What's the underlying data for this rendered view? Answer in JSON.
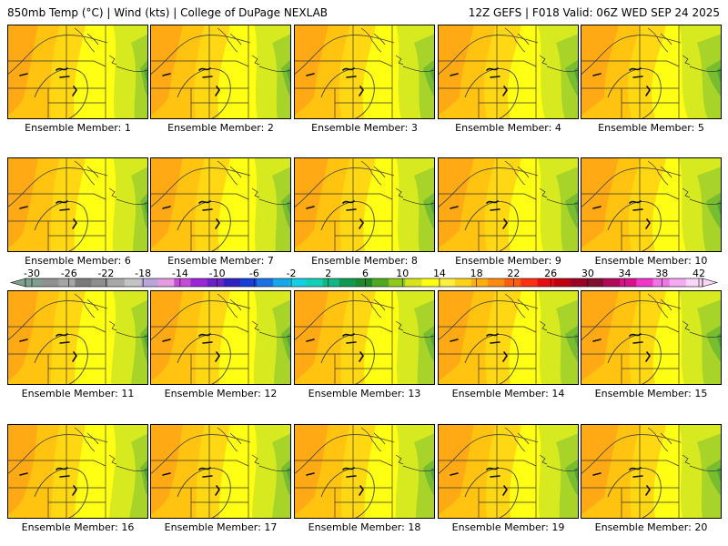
{
  "header": {
    "left": "850mb Temp (°C) | Wind (kts) | College of DuPage NEXLAB",
    "right": "12Z GEFS | F018 Valid: 06Z WED SEP 24 2025"
  },
  "panels": [
    {
      "label": "Ensemble Member: 1"
    },
    {
      "label": "Ensemble Member: 2"
    },
    {
      "label": "Ensemble Member: 3"
    },
    {
      "label": "Ensemble Member: 4"
    },
    {
      "label": "Ensemble Member: 5"
    },
    {
      "label": "Ensemble Member: 6"
    },
    {
      "label": "Ensemble Member: 7"
    },
    {
      "label": "Ensemble Member: 8"
    },
    {
      "label": "Ensemble Member: 9"
    },
    {
      "label": "Ensemble Member: 10"
    },
    {
      "label": "Ensemble Member: 11"
    },
    {
      "label": "Ensemble Member: 12"
    },
    {
      "label": "Ensemble Member: 13"
    },
    {
      "label": "Ensemble Member: 14"
    },
    {
      "label": "Ensemble Member: 15"
    },
    {
      "label": "Ensemble Member: 16"
    },
    {
      "label": "Ensemble Member: 17"
    },
    {
      "label": "Ensemble Member: 18"
    },
    {
      "label": "Ensemble Member: 19"
    },
    {
      "label": "Ensemble Member: 20"
    }
  ],
  "colorbar": {
    "ticks": [
      "-30",
      "-26",
      "-22",
      "-18",
      "-14",
      "-10",
      "-6",
      "-2",
      "2",
      "6",
      "10",
      "14",
      "18",
      "22",
      "26",
      "30",
      "34",
      "38",
      "42"
    ],
    "colors": [
      "#7f9f8f",
      "#909090",
      "#a5a5a5",
      "#7a7a7a",
      "#8e8e8e",
      "#a8a8a8",
      "#c4c4c4",
      "#b8a6dc",
      "#e49be2",
      "#c74ad9",
      "#9a26d6",
      "#6a22c8",
      "#2f22c0",
      "#1540d8",
      "#1a72e4",
      "#16a8ea",
      "#14d0e6",
      "#12d0b6",
      "#10b886",
      "#109a50",
      "#1c8a2c",
      "#50a81c",
      "#90c81c",
      "#d6e41c",
      "#ffff10",
      "#fff040",
      "#ffd21a",
      "#ffae10",
      "#ff8a10",
      "#ff6010",
      "#ff3010",
      "#e80e10",
      "#c00010",
      "#9c0024",
      "#80102e",
      "#b00a5a",
      "#d8108c",
      "#ef36c8",
      "#f076e6",
      "#f6aaf2",
      "#fbd6fa"
    ],
    "min": -30,
    "max": 42
  },
  "map_colors": {
    "orange": "#ffaa15",
    "light_orange": "#ffc310",
    "yellow_orange": "#ffd712",
    "yellow": "#ffff14",
    "lime": "#d7ea20",
    "yellow_green": "#a8d42a",
    "green": "#78bc30",
    "dark_green": "#4fa830"
  }
}
